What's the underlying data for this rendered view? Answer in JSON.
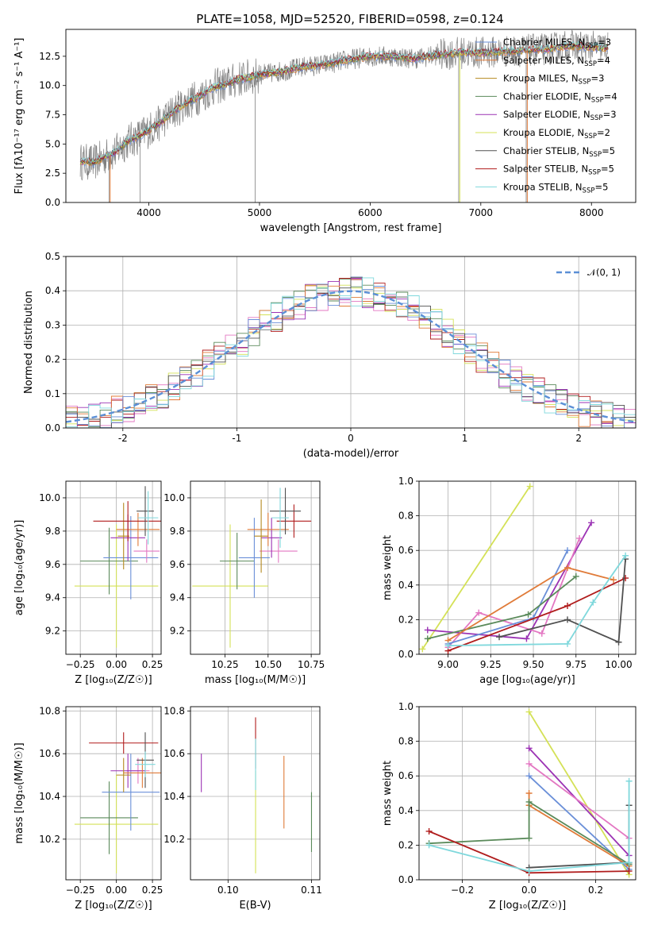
{
  "figure": {
    "title": "PLATE=1058, MJD=52520, FIBERID=0598, z=0.124"
  },
  "chart_data": [
    {
      "id": "spectrum",
      "type": "line",
      "xlabel": "wavelength [Angstrom, rest frame]",
      "ylabel": "Flux [fλ10⁻¹⁷ erg cm⁻² s⁻¹ A⁻¹]",
      "xlim": [
        3250,
        8400
      ],
      "ylim": [
        0,
        14.8
      ],
      "xticks": [
        4000,
        5000,
        6000,
        7000,
        8000
      ],
      "yticks": [
        0.0,
        2.5,
        5.0,
        7.5,
        10.0,
        12.5
      ],
      "data_color": "#808080",
      "continuum": {
        "x": [
          3380,
          3500,
          3600,
          3700,
          3800,
          3900,
          4000,
          4100,
          4200,
          4300,
          4400,
          4500,
          4600,
          4700,
          4800,
          4900,
          5000,
          5200,
          5400,
          5600,
          5800,
          6000,
          6200,
          6400,
          6600,
          6800,
          7000,
          7200,
          7400,
          7600,
          7800,
          8000,
          8150
        ],
        "y": [
          3.5,
          3.4,
          3.9,
          4.3,
          5.2,
          5.6,
          6.2,
          6.8,
          7.6,
          8.3,
          8.8,
          9.3,
          9.9,
          10.1,
          10.5,
          10.7,
          10.9,
          11.2,
          11.6,
          11.8,
          12.2,
          12.5,
          12.5,
          12.3,
          12.6,
          12.8,
          12.8,
          12.9,
          13.0,
          13.1,
          13.4,
          13.3,
          13.2
        ]
      },
      "legend": [
        {
          "label": "Chabrier MILES, N",
          "sub": "SSP",
          "tail": "=3",
          "color": "#6a8fd8"
        },
        {
          "label": "Salpeter MILES, N",
          "sub": "SSP",
          "tail": "=4",
          "color": "#e07b39"
        },
        {
          "label": "Kroupa MILES, N",
          "sub": "SSP",
          "tail": "=3",
          "color": "#b5891e"
        },
        {
          "label": "Chabrier ELODIE, N",
          "sub": "SSP",
          "tail": "=4",
          "color": "#5a8a5a"
        },
        {
          "label": "Salpeter ELODIE, N",
          "sub": "SSP",
          "tail": "=3",
          "color": "#9b32b4"
        },
        {
          "label": "Kroupa ELODIE, N",
          "sub": "SSP",
          "tail": "=2",
          "color": "#d4e157"
        },
        {
          "label": "Chabrier STELIB, N",
          "sub": "SSP",
          "tail": "=5",
          "color": "#505050"
        },
        {
          "label": "Salpeter STELIB, N",
          "sub": "SSP",
          "tail": "=5",
          "color": "#b01c1c"
        },
        {
          "label": "Kroupa STELIB, N",
          "sub": "SSP",
          "tail": "=5",
          "color": "#7fd8dc"
        }
      ]
    },
    {
      "id": "residuals",
      "type": "histogram",
      "xlabel": "(data-model)/error",
      "ylabel": "Normed distribution",
      "xlim": [
        -2.5,
        2.5
      ],
      "ylim": [
        0,
        0.5
      ],
      "xticks": [
        -2,
        -1,
        0,
        1,
        2
      ],
      "yticks": [
        0.0,
        0.1,
        0.2,
        0.3,
        0.4,
        0.5
      ],
      "legend_label": "𝒩(0, 1)",
      "gauss_color": "#5b8fd6",
      "bin_width": 0.1,
      "series_colors": [
        "#e377c2",
        "#5a8a5a",
        "#d4e157",
        "#b01c1c",
        "#9b32b4",
        "#e07b39",
        "#6a8fd8",
        "#505050",
        "#7fd8dc"
      ]
    },
    {
      "id": "age-vs-Z",
      "type": "errorbar",
      "xlabel": "Z [log₁₀(Z/Z☉)]",
      "ylabel": "age  [log₁₀(age/yr)]",
      "xlim": [
        -0.35,
        0.31
      ],
      "ylim": [
        9.06,
        10.1
      ],
      "xticks": [
        -0.25,
        0.0,
        0.25
      ],
      "xticklabels": [
        "−0.25",
        "0.00",
        "0.25"
      ],
      "yticks": [
        9.2,
        9.4,
        9.6,
        9.8,
        10.0
      ],
      "points": [
        {
          "x": 0.0,
          "xerr": 0.29,
          "y": 9.47,
          "yerr": 0.37,
          "color": "#d4e157"
        },
        {
          "x": -0.05,
          "xerr": 0.2,
          "y": 9.62,
          "yerr": 0.2,
          "color": "#5a8a5a"
        },
        {
          "x": 0.1,
          "xerr": 0.19,
          "y": 9.64,
          "yerr": 0.25,
          "color": "#6a8fd8"
        },
        {
          "x": 0.21,
          "xerr": 0.09,
          "y": 9.68,
          "yerr": 0.07,
          "color": "#e377c2"
        },
        {
          "x": 0.08,
          "xerr": 0.12,
          "y": 9.76,
          "yerr": 0.14,
          "color": "#9b32b4"
        },
        {
          "x": 0.15,
          "xerr": 0.15,
          "y": 9.81,
          "yerr": 0.1,
          "color": "#e07b39"
        },
        {
          "x": 0.05,
          "xerr": 0.04,
          "y": 9.77,
          "yerr": 0.2,
          "color": "#b5891e"
        },
        {
          "x": 0.08,
          "xerr": 0.24,
          "y": 9.86,
          "yerr": 0.12,
          "color": "#b01c1c"
        },
        {
          "x": 0.2,
          "xerr": 0.06,
          "y": 9.92,
          "yerr": 0.15,
          "color": "#505050"
        },
        {
          "x": 0.22,
          "xerr": 0.07,
          "y": 9.88,
          "yerr": 0.16,
          "color": "#7fd8dc"
        }
      ]
    },
    {
      "id": "age-vs-mass",
      "type": "errorbar",
      "xlabel": "mass [log₁₀(M/M☉)]",
      "ylabel": "",
      "xlim": [
        10.05,
        10.8
      ],
      "ylim": [
        9.06,
        10.1
      ],
      "xticks": [
        10.25,
        10.5,
        10.75
      ],
      "xticklabels": [
        "10.25",
        "10.50",
        "10.75"
      ],
      "yticks": [
        9.2,
        9.4,
        9.6,
        9.8,
        10.0
      ],
      "points": [
        {
          "x": 10.28,
          "xerr": 0.22,
          "y": 9.47,
          "yerr": 0.37,
          "color": "#d4e157"
        },
        {
          "x": 10.32,
          "xerr": 0.1,
          "y": 9.62,
          "yerr": 0.17,
          "color": "#5a8a5a"
        },
        {
          "x": 10.42,
          "xerr": 0.09,
          "y": 9.64,
          "yerr": 0.24,
          "color": "#6a8fd8"
        },
        {
          "x": 10.56,
          "xerr": 0.11,
          "y": 9.68,
          "yerr": 0.07,
          "color": "#e377c2"
        },
        {
          "x": 10.52,
          "xerr": 0.06,
          "y": 9.76,
          "yerr": 0.12,
          "color": "#9b32b4"
        },
        {
          "x": 10.5,
          "xerr": 0.12,
          "y": 9.81,
          "yerr": 0.1,
          "color": "#e07b39"
        },
        {
          "x": 10.46,
          "xerr": 0.04,
          "y": 9.77,
          "yerr": 0.22,
          "color": "#b5891e"
        },
        {
          "x": 10.65,
          "xerr": 0.1,
          "y": 9.86,
          "yerr": 0.1,
          "color": "#b01c1c"
        },
        {
          "x": 10.6,
          "xerr": 0.09,
          "y": 9.92,
          "yerr": 0.14,
          "color": "#505050"
        },
        {
          "x": 10.57,
          "xerr": 0.05,
          "y": 9.88,
          "yerr": 0.18,
          "color": "#7fd8dc"
        }
      ]
    },
    {
      "id": "weight-vs-age",
      "type": "line",
      "xlabel": "age  [log₁₀(age/yr)]",
      "ylabel": "mass weight",
      "xlim": [
        8.83,
        10.1
      ],
      "ylim": [
        0,
        1.0
      ],
      "xticks": [
        9.0,
        9.25,
        9.5,
        9.75,
        10.0
      ],
      "xticklabels": [
        "9.00",
        "9.25",
        "9.50",
        "9.75",
        "10.00"
      ],
      "yticks": [
        0.0,
        0.2,
        0.4,
        0.6,
        0.8,
        1.0
      ],
      "series": [
        {
          "color": "#d4e157",
          "points": [
            [
              8.85,
              0.03
            ],
            [
              9.48,
              0.97
            ]
          ]
        },
        {
          "color": "#9b32b4",
          "points": [
            [
              8.88,
              0.14
            ],
            [
              9.46,
              0.09
            ],
            [
              9.84,
              0.76
            ]
          ]
        },
        {
          "color": "#e377c2",
          "points": [
            [
              9.0,
              0.04
            ],
            [
              9.18,
              0.24
            ],
            [
              9.55,
              0.12
            ],
            [
              9.77,
              0.67
            ]
          ]
        },
        {
          "color": "#6a8fd8",
          "points": [
            [
              9.0,
              0.06
            ],
            [
              9.5,
              0.21
            ],
            [
              9.7,
              0.6
            ]
          ]
        },
        {
          "color": "#5a8a5a",
          "points": [
            [
              8.88,
              0.09
            ],
            [
              9.47,
              0.23
            ],
            [
              9.75,
              0.45
            ]
          ]
        },
        {
          "color": "#e07b39",
          "points": [
            [
              9.0,
              0.08
            ],
            [
              9.7,
              0.5
            ],
            [
              9.97,
              0.43
            ]
          ]
        },
        {
          "color": "#b01c1c",
          "points": [
            [
              9.0,
              0.02
            ],
            [
              9.7,
              0.28
            ],
            [
              10.04,
              0.44
            ]
          ]
        },
        {
          "color": "#505050",
          "points": [
            [
              9.3,
              0.1
            ],
            [
              9.7,
              0.2
            ],
            [
              10.0,
              0.07
            ],
            [
              10.04,
              0.55
            ]
          ]
        },
        {
          "color": "#7fd8dc",
          "points": [
            [
              9.0,
              0.05
            ],
            [
              9.7,
              0.06
            ],
            [
              9.85,
              0.3
            ],
            [
              10.04,
              0.57
            ]
          ]
        }
      ]
    },
    {
      "id": "mass-vs-Z",
      "type": "errorbar",
      "xlabel": "Z [log₁₀(Z/Z☉)]",
      "ylabel": "mass [log₁₀(M/M☉)]",
      "xlim": [
        -0.35,
        0.31
      ],
      "ylim": [
        10.01,
        10.82
      ],
      "xticks": [
        -0.25,
        0.0,
        0.25
      ],
      "xticklabels": [
        "−0.25",
        "0.00",
        "0.25"
      ],
      "yticks": [
        10.2,
        10.4,
        10.6,
        10.8
      ],
      "points": [
        {
          "x": 0.0,
          "xerr": 0.29,
          "y": 10.27,
          "yerr": 0.23,
          "color": "#d4e157"
        },
        {
          "x": -0.05,
          "xerr": 0.2,
          "y": 10.3,
          "yerr": 0.17,
          "color": "#5a8a5a"
        },
        {
          "x": 0.1,
          "xerr": 0.2,
          "y": 10.42,
          "yerr": 0.18,
          "color": "#6a8fd8"
        },
        {
          "x": 0.15,
          "xerr": 0.08,
          "y": 10.52,
          "yerr": 0.06,
          "color": "#e377c2"
        },
        {
          "x": 0.08,
          "xerr": 0.12,
          "y": 10.52,
          "yerr": 0.08,
          "color": "#9b32b4"
        },
        {
          "x": 0.18,
          "xerr": 0.13,
          "y": 10.51,
          "yerr": 0.07,
          "color": "#e07b39"
        },
        {
          "x": 0.05,
          "xerr": 0.05,
          "y": 10.5,
          "yerr": 0.08,
          "color": "#b5891e"
        },
        {
          "x": 0.05,
          "xerr": 0.24,
          "y": 10.65,
          "yerr": 0.05,
          "color": "#b01c1c"
        },
        {
          "x": 0.2,
          "xerr": 0.06,
          "y": 10.57,
          "yerr": 0.13,
          "color": "#505050"
        },
        {
          "x": 0.2,
          "xerr": 0.07,
          "y": 10.55,
          "yerr": 0.06,
          "color": "#7fd8dc"
        }
      ]
    },
    {
      "id": "mass-vs-ebv",
      "type": "errorbar",
      "xlabel": "E(B-V)",
      "ylabel": "",
      "xlim": [
        0.0955,
        0.111
      ],
      "ylim": [
        10.01,
        10.82
      ],
      "xticks": [
        0.1,
        0.11
      ],
      "xticklabels": [
        "0.10",
        "0.11"
      ],
      "yticks": [
        10.2,
        10.4,
        10.6,
        10.8
      ],
      "points": [
        {
          "x": 0.0968,
          "xerr": 0,
          "y": 10.51,
          "yerr": 0.09,
          "color": "#9b32b4"
        },
        {
          "x": 0.1033,
          "xerr": 0,
          "y": 10.28,
          "yerr": 0.24,
          "color": "#d4e157"
        },
        {
          "x": 0.1033,
          "xerr": 0,
          "y": 10.65,
          "yerr": 0.12,
          "color": "#b01c1c"
        },
        {
          "x": 0.1033,
          "xerr": 0,
          "y": 10.55,
          "yerr": 0.12,
          "color": "#7fd8dc"
        },
        {
          "x": 0.1067,
          "xerr": 0,
          "y": 10.42,
          "yerr": 0.17,
          "color": "#e07b39"
        },
        {
          "x": 0.11,
          "xerr": 0,
          "y": 10.28,
          "yerr": 0.14,
          "color": "#5a8a5a"
        }
      ]
    },
    {
      "id": "weight-vs-Z",
      "type": "line",
      "xlabel": "Z [log₁₀(Z/Z☉)]",
      "ylabel": "mass weight",
      "xlim": [
        -0.33,
        0.32
      ],
      "ylim": [
        0,
        1.0
      ],
      "xticks": [
        -0.2,
        0.0,
        0.2
      ],
      "xticklabels": [
        "−0.2",
        "0.0",
        "0.2"
      ],
      "yticks": [
        0.0,
        0.2,
        0.4,
        0.6,
        0.8,
        1.0
      ],
      "series": [
        {
          "color": "#d4e157",
          "points": [
            [
              0.0,
              0.97
            ],
            [
              0.3,
              0.03
            ]
          ]
        },
        {
          "color": "#9b32b4",
          "points": [
            [
              0.0,
              0.76
            ],
            [
              0.3,
              0.14
            ]
          ]
        },
        {
          "color": "#e377c2",
          "points": [
            [
              0.0,
              0.67
            ],
            [
              0.3,
              0.24
            ]
          ]
        },
        {
          "color": "#6a8fd8",
          "points": [
            [
              0.0,
              0.6
            ],
            [
              0.3,
              0.06
            ]
          ]
        },
        {
          "color": "#e07b39",
          "points": [
            [
              0.0,
              0.5
            ],
            [
              0.0,
              0.43
            ],
            [
              0.3,
              0.08
            ]
          ]
        },
        {
          "color": "#5a8a5a",
          "points": [
            [
              -0.3,
              0.21
            ],
            [
              0.0,
              0.24
            ],
            [
              0.0,
              0.45
            ],
            [
              0.3,
              0.09
            ]
          ]
        },
        {
          "color": "#b01c1c",
          "points": [
            [
              -0.3,
              0.28
            ],
            [
              0.0,
              0.04
            ],
            [
              0.3,
              0.05
            ]
          ]
        },
        {
          "color": "#505050",
          "points": [
            [
              0.0,
              0.07
            ],
            [
              0.3,
              0.1
            ],
            [
              0.3,
              0.43
            ]
          ]
        },
        {
          "color": "#7fd8dc",
          "points": [
            [
              -0.3,
              0.2
            ],
            [
              0.0,
              0.05
            ],
            [
              0.3,
              0.1
            ],
            [
              0.3,
              0.57
            ]
          ]
        }
      ]
    }
  ]
}
